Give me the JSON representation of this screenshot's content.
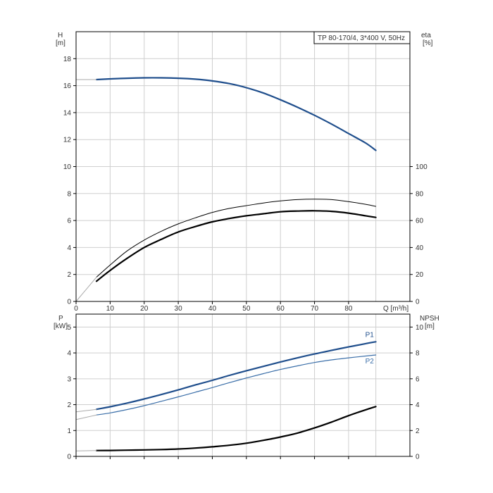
{
  "chart_data": [
    {
      "type": "line",
      "title": "TP 80-170/4, 3*400 V, 50Hz",
      "xlabel": "Q [m³/h]",
      "x_ticks": [
        0,
        10,
        20,
        30,
        40,
        50,
        60,
        70,
        80
      ],
      "xlim": [
        0,
        98
      ],
      "left_axis": {
        "label_line1": "H",
        "label_line2": "[m]",
        "ylim": [
          0,
          20
        ],
        "ticks": [
          0,
          2,
          4,
          6,
          8,
          10,
          12,
          14,
          16,
          18
        ]
      },
      "right_axis": {
        "label_line1": "eta",
        "label_line2": "[%]",
        "ylim": [
          0,
          200
        ],
        "ticks": [
          0,
          20,
          40,
          60,
          80,
          100
        ]
      },
      "grid": true,
      "colors": {
        "head": "#1f4e8c",
        "efficiency": "#000000",
        "faint": "#aaaaaa"
      },
      "series": [
        {
          "axis": "left",
          "style": "head",
          "width": 2.2,
          "x": [
            6,
            10,
            15,
            20,
            25,
            30,
            35,
            40,
            45,
            50,
            55,
            60,
            65,
            70,
            75,
            80,
            85,
            88
          ],
          "y": [
            16.45,
            16.5,
            16.55,
            16.58,
            16.58,
            16.55,
            16.48,
            16.35,
            16.15,
            15.85,
            15.45,
            14.95,
            14.4,
            13.8,
            13.15,
            12.45,
            11.75,
            11.2
          ]
        },
        {
          "axis": "left",
          "style": "faint",
          "width": 1,
          "x": [
            0,
            6
          ],
          "y": [
            16.45,
            16.45
          ]
        },
        {
          "axis": "right",
          "style": "efficiency",
          "width": 1,
          "x": [
            6,
            10,
            15,
            20,
            25,
            30,
            35,
            40,
            45,
            50,
            55,
            60,
            65,
            70,
            75,
            80,
            85,
            88
          ],
          "y": [
            18,
            27,
            37.5,
            45.5,
            52,
            57.5,
            62,
            66,
            69,
            71,
            73,
            74.5,
            75.5,
            75.8,
            75.5,
            74,
            72,
            70.5
          ]
        },
        {
          "axis": "right",
          "style": "efficiency",
          "width": 2.2,
          "x": [
            6,
            10,
            15,
            20,
            25,
            30,
            35,
            40,
            45,
            50,
            55,
            60,
            65,
            70,
            75,
            80,
            85,
            88
          ],
          "y": [
            15,
            23,
            32,
            40,
            46,
            51.5,
            55.5,
            59,
            61.5,
            63.5,
            65,
            66.5,
            67,
            67.2,
            66.8,
            65.5,
            63.5,
            62.3
          ]
        },
        {
          "axis": "right",
          "style": "faint",
          "width": 1,
          "x": [
            0,
            3,
            6
          ],
          "y": [
            0,
            9,
            18
          ]
        }
      ]
    },
    {
      "type": "line",
      "xlabel": "",
      "x_ticks": [
        0,
        10,
        20,
        30,
        40,
        50,
        60,
        70,
        80
      ],
      "xlim": [
        0,
        98
      ],
      "left_axis": {
        "label_line1": "P",
        "label_line2": "[kW]",
        "ylim": [
          0,
          5.5
        ],
        "ticks": [
          0,
          1,
          2,
          3,
          4,
          5
        ]
      },
      "right_axis": {
        "label_line1": "NPSH",
        "label_line2": "[m]",
        "ylim": [
          0,
          11
        ],
        "ticks": [
          0,
          2,
          4,
          6,
          8,
          10
        ]
      },
      "grid": true,
      "colors": {
        "p1": "#1f4e8c",
        "p2": "#3a6ea8",
        "npsh": "#000000",
        "faint": "#aaaaaa"
      },
      "series": [
        {
          "name": "P1",
          "axis": "left",
          "style": "p1",
          "width": 2.2,
          "label": true,
          "x": [
            6,
            10,
            15,
            20,
            25,
            30,
            35,
            40,
            45,
            50,
            55,
            60,
            65,
            70,
            75,
            80,
            85,
            88
          ],
          "y": [
            1.82,
            1.92,
            2.06,
            2.22,
            2.39,
            2.57,
            2.76,
            2.94,
            3.13,
            3.31,
            3.48,
            3.65,
            3.81,
            3.96,
            4.1,
            4.23,
            4.36,
            4.43
          ]
        },
        {
          "name": "P2",
          "axis": "left",
          "style": "p2",
          "width": 1.2,
          "label": true,
          "x": [
            6,
            10,
            15,
            20,
            25,
            30,
            35,
            40,
            45,
            50,
            55,
            60,
            65,
            70,
            75,
            80,
            85,
            88
          ],
          "y": [
            1.6,
            1.68,
            1.81,
            1.96,
            2.13,
            2.3,
            2.48,
            2.66,
            2.85,
            3.03,
            3.2,
            3.36,
            3.5,
            3.63,
            3.73,
            3.81,
            3.88,
            3.92
          ]
        },
        {
          "axis": "left",
          "style": "faint",
          "width": 1,
          "x": [
            0,
            6
          ],
          "y": [
            1.72,
            1.82
          ]
        },
        {
          "axis": "left",
          "style": "faint",
          "width": 1,
          "x": [
            0,
            6
          ],
          "y": [
            1.42,
            1.6
          ]
        },
        {
          "axis": "right",
          "style": "npsh",
          "width": 2.2,
          "x": [
            6,
            10,
            15,
            20,
            25,
            30,
            35,
            40,
            45,
            50,
            55,
            60,
            65,
            70,
            75,
            80,
            85,
            88
          ],
          "y": [
            0.45,
            0.46,
            0.48,
            0.5,
            0.53,
            0.57,
            0.64,
            0.74,
            0.86,
            1.02,
            1.24,
            1.5,
            1.8,
            2.2,
            2.65,
            3.15,
            3.6,
            3.85
          ]
        },
        {
          "axis": "right",
          "style": "faint",
          "width": 1,
          "x": [
            0,
            6
          ],
          "y": [
            0.42,
            0.45
          ]
        }
      ]
    }
  ]
}
